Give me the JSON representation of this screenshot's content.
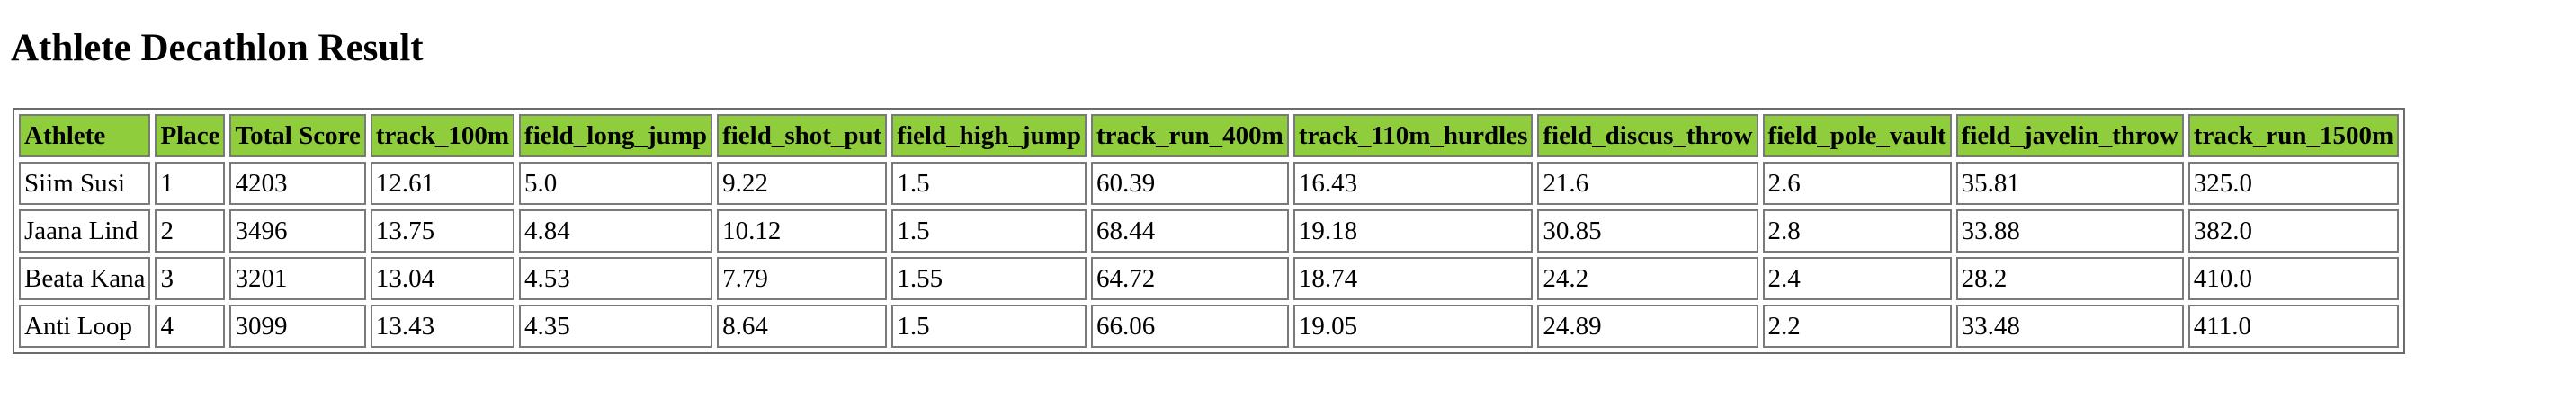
{
  "page": {
    "title": "Athlete Decathlon Result"
  },
  "table": {
    "headers": [
      "Athlete",
      "Place",
      "Total Score",
      "track_100m",
      "field_long_jump",
      "field_shot_put",
      "field_high_jump",
      "track_run_400m",
      "track_110m_hurdles",
      "field_discus_throw",
      "field_pole_vault",
      "field_javelin_throw",
      "track_run_1500m"
    ],
    "rows": [
      [
        "Siim Susi",
        "1",
        "4203",
        "12.61",
        "5.0",
        "9.22",
        "1.5",
        "60.39",
        "16.43",
        "21.6",
        "2.6",
        "35.81",
        "325.0"
      ],
      [
        "Jaana Lind",
        "2",
        "3496",
        "13.75",
        "4.84",
        "10.12",
        "1.5",
        "68.44",
        "19.18",
        "30.85",
        "2.8",
        "33.88",
        "382.0"
      ],
      [
        "Beata Kana",
        "3",
        "3201",
        "13.04",
        "4.53",
        "7.79",
        "1.55",
        "64.72",
        "18.74",
        "24.2",
        "2.4",
        "28.2",
        "410.0"
      ],
      [
        "Anti Loop",
        "4",
        "3099",
        "13.43",
        "4.35",
        "8.64",
        "1.5",
        "66.06",
        "19.05",
        "24.89",
        "2.2",
        "33.48",
        "411.0"
      ]
    ]
  },
  "colors": {
    "header_bg": "#8fcd3c",
    "cell_border": "#7a7a7a",
    "page_bg": "#ffffff"
  }
}
